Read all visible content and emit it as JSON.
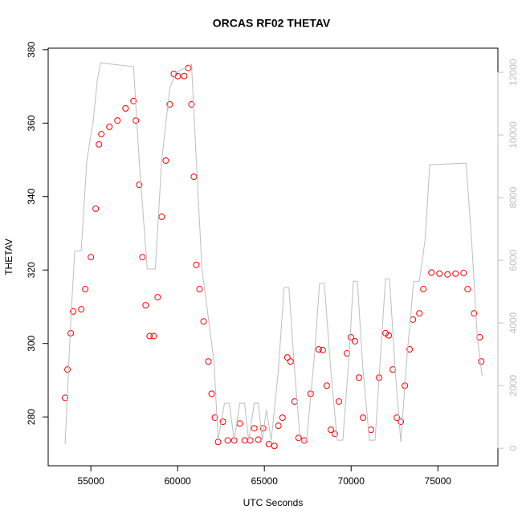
{
  "chart_data": {
    "type": "scatter",
    "title": "ORCAS RF02 THETAV",
    "xlabel": "UTC Seconds",
    "ylabel": "THETAV",
    "xlim": [
      52540,
      78460
    ],
    "ylim": [
      266.7,
      380.4
    ],
    "y2lim": [
      -560,
      12770
    ],
    "xticks": [
      55000,
      60000,
      65000,
      70000,
      75000
    ],
    "yticks": [
      280,
      300,
      320,
      340,
      360,
      380
    ],
    "y2ticks": [
      0,
      2000,
      4000,
      6000,
      8000,
      10000,
      12000
    ],
    "series": [
      {
        "color": "#ff0000",
        "x": [
          53515,
          53654,
          53840,
          53979,
          54443,
          54675,
          55000,
          55278,
          55464,
          55603,
          56067,
          56531,
          56995,
          57459,
          57598,
          57784,
          57970,
          58155,
          58387,
          58619,
          58851,
          59083,
          59315,
          59547,
          59779,
          60011,
          60382,
          60614,
          60800,
          60939,
          61078,
          61264,
          61496,
          61774,
          61960,
          62146,
          62331,
          62610,
          62888,
          63259,
          63584,
          63862,
          64187,
          64419,
          64651,
          64930,
          65254,
          65579,
          65811,
          66043,
          66322,
          66507,
          66739,
          66971,
          67296,
          67667,
          68131,
          68363,
          68595,
          68827,
          69059,
          69291,
          69755,
          69987,
          70219,
          70451,
          70683,
          71147,
          71611,
          71982,
          72168,
          72400,
          72632,
          72864,
          73096,
          73374,
          73560,
          73931,
          74163,
          74627,
          75091,
          75555,
          76019,
          76483,
          76715,
          77086,
          77411,
          77500
        ],
        "values": [
          285.2,
          292.9,
          302.8,
          308.7,
          309.3,
          314.8,
          323.5,
          336.7,
          354.2,
          357,
          359,
          360.7,
          364,
          366,
          360.7,
          343.2,
          323.5,
          310.4,
          302,
          302,
          312.6,
          334.5,
          349.8,
          365.1,
          373.4,
          372.8,
          372.8,
          375,
          365.1,
          345.4,
          321.4,
          314.8,
          306,
          295.1,
          286.3,
          279.8,
          273.2,
          278.7,
          273.6,
          273.6,
          278.2,
          273.6,
          273.6,
          276.9,
          273.8,
          276.9,
          272.6,
          272.1,
          277.6,
          279.8,
          296.2,
          295.1,
          284.2,
          274.3,
          273.6,
          286.3,
          298.4,
          298.2,
          288.5,
          276.5,
          275.4,
          284.2,
          297.3,
          301.7,
          300.6,
          290.7,
          279.8,
          276.5,
          290.7,
          302.8,
          302.2,
          292.9,
          279.8,
          278.7,
          288.5,
          298.4,
          306.5,
          308.2,
          314.8,
          319.3,
          319,
          318.8,
          319,
          319.2,
          314.8,
          308.2,
          301.7,
          295.1
        ]
      },
      {
        "color": "#bebebe",
        "axis": "y2",
        "x": [
          53515,
          53840,
          54072,
          54443,
          54768,
          55139,
          55371,
          55557,
          57459,
          57784,
          58248,
          58712,
          59083,
          59547,
          59918,
          60382,
          60800,
          61078,
          61403,
          62099,
          62331,
          62702,
          62981,
          63259,
          63584,
          63862,
          64094,
          64419,
          64651,
          64883,
          65115,
          65394,
          65811,
          66136,
          66414,
          66739,
          67064,
          67435,
          67899,
          68178,
          68456,
          68827,
          69198,
          69523,
          69894,
          70126,
          70358,
          70683,
          71054,
          71379,
          71704,
          71982,
          72214,
          72539,
          72864,
          73235,
          73606,
          73931,
          74256,
          74534,
          76622,
          76947,
          77272,
          77550
        ],
        "values": [
          128,
          4050,
          6300,
          6300,
          9180,
          10460,
          11740,
          12300,
          12180,
          9180,
          5720,
          5720,
          9180,
          11490,
          12000,
          12130,
          12260,
          9180,
          5720,
          2770,
          256,
          1436,
          1436,
          256,
          1436,
          1436,
          256,
          1436,
          1436,
          256,
          1230,
          256,
          2510,
          5130,
          5130,
          2510,
          256,
          256,
          3030,
          5260,
          5260,
          2510,
          256,
          256,
          3030,
          5330,
          5330,
          2510,
          256,
          256,
          3030,
          5410,
          5410,
          2510,
          205,
          3030,
          5330,
          5330,
          6620,
          9050,
          9100,
          6620,
          3540,
          2310
        ]
      }
    ]
  }
}
